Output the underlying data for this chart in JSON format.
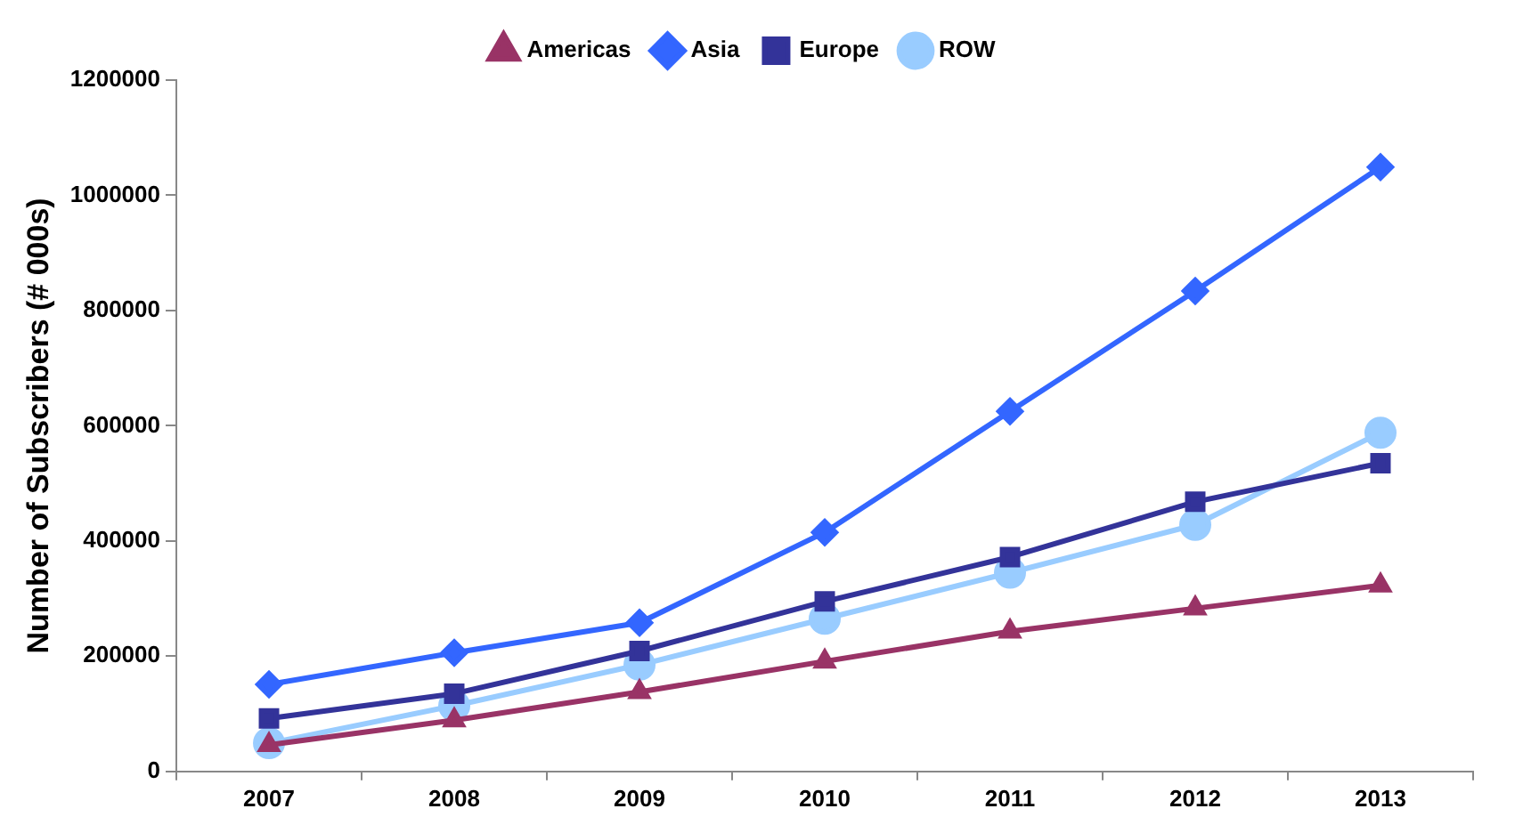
{
  "chart_data": {
    "type": "line",
    "ylabel": "Number of Subscribers (# 000s)",
    "categories": [
      "2007",
      "2008",
      "2009",
      "2010",
      "2011",
      "2012",
      "2013"
    ],
    "series": [
      {
        "name": "Americas",
        "color": "#993366",
        "marker": "triangle",
        "values": [
          46000,
          89000,
          138000,
          191000,
          243000,
          283000,
          323000
        ]
      },
      {
        "name": "Asia",
        "color": "#3366ff",
        "marker": "diamond",
        "values": [
          151000,
          206000,
          258000,
          415000,
          625000,
          834000,
          1049000
        ]
      },
      {
        "name": "Europe",
        "color": "#333399",
        "marker": "square",
        "values": [
          92000,
          135000,
          209000,
          295000,
          372000,
          468000,
          535000
        ]
      },
      {
        "name": "ROW",
        "color": "#99ccff",
        "marker": "circle",
        "values": [
          49000,
          114000,
          185000,
          265000,
          345000,
          428000,
          588000
        ]
      }
    ],
    "ylim": [
      0,
      1200000
    ],
    "yticks": [
      0,
      200000,
      400000,
      600000,
      800000,
      1000000,
      1200000
    ],
    "grid": false,
    "legend": "top",
    "line_style": "solid"
  }
}
